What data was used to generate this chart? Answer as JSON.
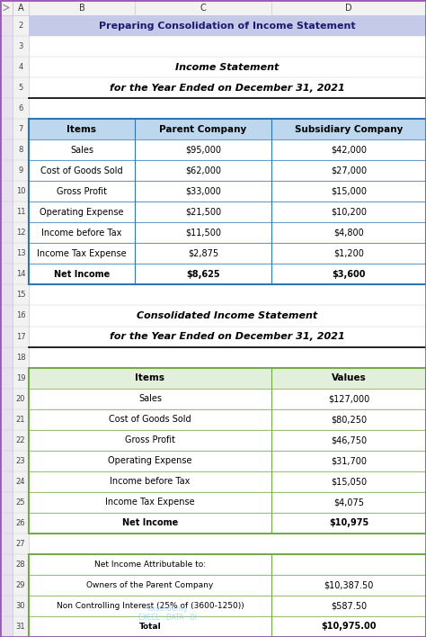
{
  "title_row": "Preparing Consolidation of Income Statement",
  "title_bg": "#C5CAE9",
  "title_border": "#7B68EE",
  "title_color": "#1a1a6e",
  "section1_title1": "Income Statement",
  "section1_title2": "for the Year Ended on December 31, 2021",
  "table1_header": [
    "Items",
    "Parent Company",
    "Subsidiary Company"
  ],
  "table1_header_bg": "#BDD7EE",
  "table1_rows": [
    [
      "Sales",
      "$95,000",
      "$42,000"
    ],
    [
      "Cost of Goods Sold",
      "$62,000",
      "$27,000"
    ],
    [
      "Gross Profit",
      "$33,000",
      "$15,000"
    ],
    [
      "Operating Expense",
      "$21,500",
      "$10,200"
    ],
    [
      "Income before Tax",
      "$11,500",
      "$4,800"
    ],
    [
      "Income Tax Expense",
      "$2,875",
      "$1,200"
    ],
    [
      "Net Income",
      "$8,625",
      "$3,600"
    ]
  ],
  "section2_title1": "Consolidated Income Statement",
  "section2_title2": "for the Year Ended on December 31, 2021",
  "table2_header": [
    "Items",
    "Values"
  ],
  "table2_header_bg": "#E2EFDA",
  "table2_rows": [
    [
      "Sales",
      "$127,000"
    ],
    [
      "Cost of Goods Sold",
      "$80,250"
    ],
    [
      "Gross Profit",
      "$46,750"
    ],
    [
      "Operating Expense",
      "$31,700"
    ],
    [
      "Income before Tax",
      "$15,050"
    ],
    [
      "Income Tax Expense",
      "$4,075"
    ],
    [
      "Net Income",
      "$10,975"
    ]
  ],
  "table3_rows": [
    [
      "Net Income Attributable to:",
      ""
    ],
    [
      "Owners of the Parent Company",
      "$10,387.50"
    ],
    [
      "Non Controlling Interest (25% of (3600-1250))",
      "$587.50"
    ],
    [
      "Total",
      "$10,975.00"
    ]
  ],
  "col_labels": [
    "A",
    "B",
    "C",
    "D"
  ],
  "bg_color": "#FFFFFF",
  "grid_color": "#C8C8C8",
  "col_header_bg": "#F2F2F2",
  "row_header_bg": "#F2F2F2",
  "table1_border": "#2E75B6",
  "table2_border": "#70AD47",
  "watermark_line1": "exceldemy",
  "watermark_line2": "EXCEL · DATA · BI",
  "outer_purple": "#9B59B6"
}
